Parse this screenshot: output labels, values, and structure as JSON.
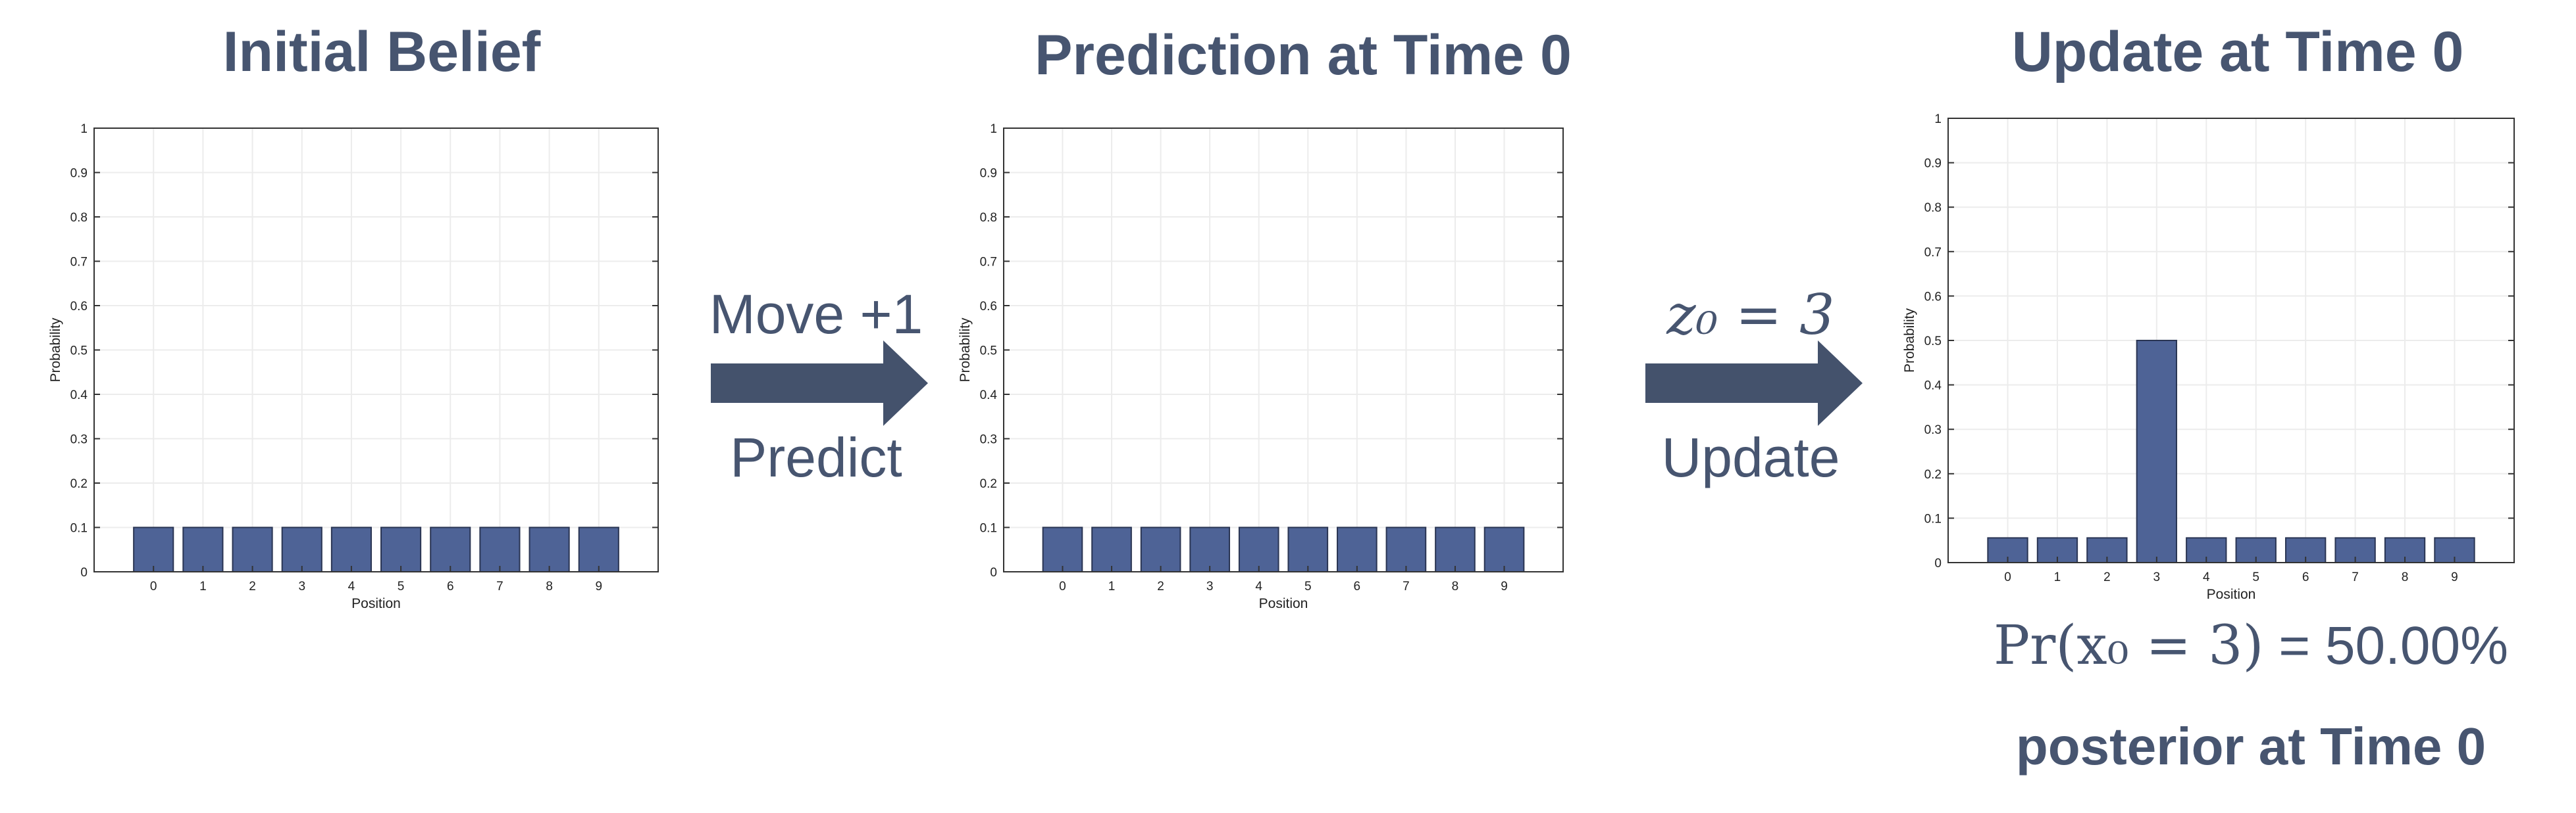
{
  "arrows": [
    {
      "top": "Move +1",
      "bottom": "Predict"
    },
    {
      "top": "z₀ = 3",
      "bottom": "Update"
    }
  ],
  "probability_text": {
    "lhs": "Pr(x₀ = 3)",
    "rhs": " = 50.00%"
  },
  "caption": "posterior at Time 0",
  "colors": {
    "bar": "#4e6396",
    "bar_edge": "#2a3553",
    "text": "#475570",
    "arrow": "#44526c"
  },
  "chart_data": [
    {
      "type": "bar",
      "title": "Initial Belief",
      "categories": [
        "0",
        "1",
        "2",
        "3",
        "4",
        "5",
        "6",
        "7",
        "8",
        "9"
      ],
      "values": [
        0.1,
        0.1,
        0.1,
        0.1,
        0.1,
        0.1,
        0.1,
        0.1,
        0.1,
        0.1
      ],
      "xlabel": "Position",
      "ylabel": "Probability",
      "ylim": [
        0,
        1
      ],
      "yticks": [
        "0",
        "0.1",
        "0.2",
        "0.3",
        "0.4",
        "0.5",
        "0.6",
        "0.7",
        "0.8",
        "0.9",
        "1"
      ],
      "grid": true
    },
    {
      "type": "bar",
      "title": "Prediction at Time 0",
      "categories": [
        "0",
        "1",
        "2",
        "3",
        "4",
        "5",
        "6",
        "7",
        "8",
        "9"
      ],
      "values": [
        0.1,
        0.1,
        0.1,
        0.1,
        0.1,
        0.1,
        0.1,
        0.1,
        0.1,
        0.1
      ],
      "xlabel": "Position",
      "ylabel": "Probability",
      "ylim": [
        0,
        1
      ],
      "yticks": [
        "0",
        "0.1",
        "0.2",
        "0.3",
        "0.4",
        "0.5",
        "0.6",
        "0.7",
        "0.8",
        "0.9",
        "1"
      ],
      "grid": true
    },
    {
      "type": "bar",
      "title": "Update at Time 0",
      "categories": [
        "0",
        "1",
        "2",
        "3",
        "4",
        "5",
        "6",
        "7",
        "8",
        "9"
      ],
      "values": [
        0.0556,
        0.0556,
        0.0556,
        0.5,
        0.0556,
        0.0556,
        0.0556,
        0.0556,
        0.0556,
        0.0556
      ],
      "xlabel": "Position",
      "ylabel": "Probability",
      "ylim": [
        0,
        1
      ],
      "yticks": [
        "0",
        "0.1",
        "0.2",
        "0.3",
        "0.4",
        "0.5",
        "0.6",
        "0.7",
        "0.8",
        "0.9",
        "1"
      ],
      "grid": true
    }
  ]
}
